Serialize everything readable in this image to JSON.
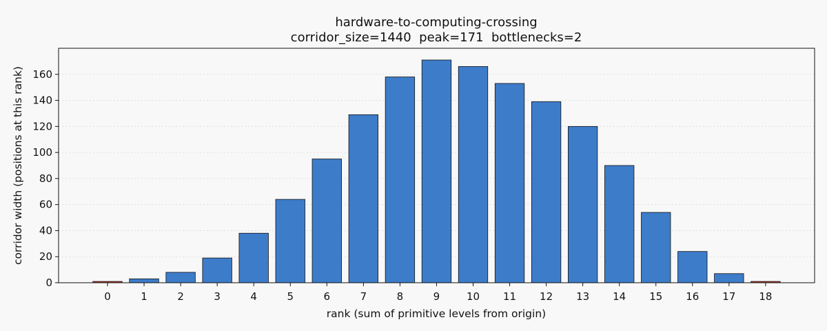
{
  "chart_data": {
    "type": "bar",
    "title": "hardware-to-computing-crossing",
    "subtitle": "corridor_size=1440  peak=171  bottlenecks=2",
    "xlabel": "rank (sum of primitive levels from origin)",
    "ylabel": "corridor width (positions at this rank)",
    "categories": [
      "0",
      "1",
      "2",
      "3",
      "4",
      "5",
      "6",
      "7",
      "8",
      "9",
      "10",
      "11",
      "12",
      "13",
      "14",
      "15",
      "16",
      "17",
      "18"
    ],
    "values": [
      1,
      3,
      8,
      19,
      38,
      64,
      95,
      129,
      158,
      171,
      166,
      153,
      139,
      120,
      90,
      54,
      24,
      7,
      1
    ],
    "bottleneck_ranks": [
      "0",
      "18"
    ],
    "ylim": [
      0,
      180
    ],
    "yticks": [
      0,
      20,
      40,
      60,
      80,
      100,
      120,
      140,
      160
    ],
    "grid": "y",
    "colors": {
      "bar": "#3d7cc9",
      "bottleneck": "#c0392b",
      "bar_edge": "#111111",
      "background": "#f8f8f8",
      "axes_bg": "#f8f8f8"
    }
  }
}
